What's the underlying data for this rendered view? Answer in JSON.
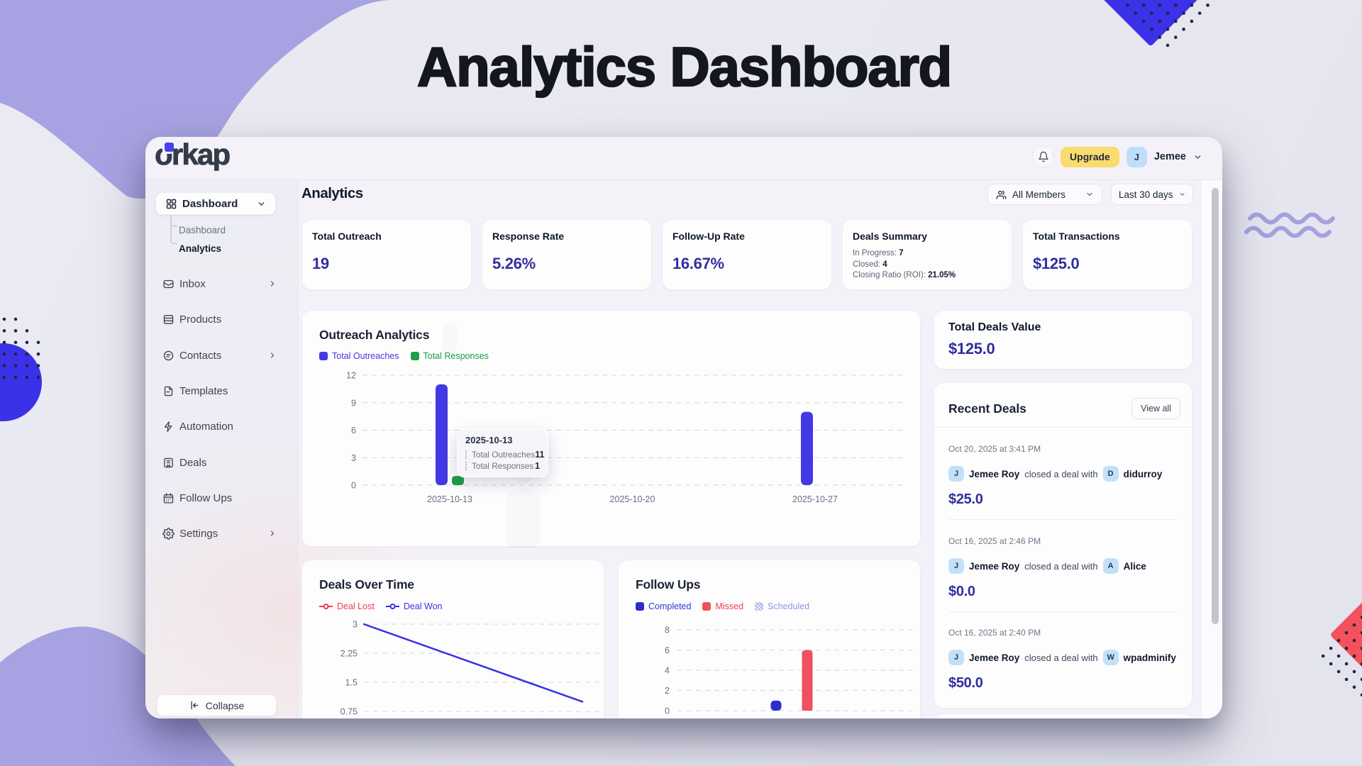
{
  "page": {
    "title": "Analytics Dashboard"
  },
  "colors": {
    "accent_blue": "#4438e2",
    "green": "#1f9e4a",
    "red": "#f0515f",
    "indigo_value": "#322e9e",
    "yellow": "#f8dd6e",
    "purple_blob": "#a7a2e1",
    "blue_shape": "#3b31e9",
    "dots": "#20263a",
    "avatar_bg": "#bedefb",
    "grid_line": "#d5d5e0",
    "legend_blue_text": "#4438e2",
    "legend_green_text": "#189a45",
    "legend_red_text": "#e8414e",
    "scheduled": "#8f99d9"
  },
  "window": {
    "brand": "orkap",
    "header": {
      "upgrade_label": "Upgrade",
      "user_initial": "J",
      "user_name": "Jemee"
    },
    "sidebar": {
      "items": [
        {
          "label": "Dashboard"
        },
        {
          "label": "Inbox"
        },
        {
          "label": "Products"
        },
        {
          "label": "Contacts"
        },
        {
          "label": "Templates"
        },
        {
          "label": "Automation"
        },
        {
          "label": "Deals"
        },
        {
          "label": "Follow Ups"
        },
        {
          "label": "Settings"
        }
      ],
      "sub_items": [
        {
          "label": "Dashboard"
        },
        {
          "label": "Analytics"
        }
      ],
      "collapse_label": "Collapse"
    },
    "main": {
      "heading": "Analytics",
      "filters": {
        "members": "All Members",
        "range": "Last 30 days"
      },
      "stats": [
        {
          "title": "Total Outreach",
          "value": "19"
        },
        {
          "title": "Response Rate",
          "value": "5.26%"
        },
        {
          "title": "Follow-Up Rate",
          "value": "16.67%"
        },
        {
          "title": "Deals Summary",
          "lines": [
            {
              "label": "In Progress:",
              "value": "7"
            },
            {
              "label": "Closed:",
              "value": "4"
            },
            {
              "label": "Closing Ratio (ROI):",
              "value": "21.05%"
            }
          ]
        },
        {
          "title": "Total Transactions",
          "value": "$125.0"
        }
      ],
      "total_deals_value": {
        "title": "Total Deals Value",
        "value": "$125.0"
      },
      "recent_deals": {
        "title": "Recent Deals",
        "action": "View all",
        "items": [
          {
            "time": "Oct 20, 2025 at 3:41 PM",
            "actor": "Jemee Roy",
            "actor_initial": "J",
            "verb": "closed a deal with",
            "target": "didurroy",
            "target_initial": "D",
            "amount": "$25.0"
          },
          {
            "time": "Oct 16, 2025 at 2:46 PM",
            "actor": "Jemee Roy",
            "actor_initial": "J",
            "verb": "closed a deal with",
            "target": "Alice",
            "target_initial": "A",
            "amount": "$0.0"
          },
          {
            "time": "Oct 16, 2025 at 2:40 PM",
            "actor": "Jemee Roy",
            "actor_initial": "J",
            "verb": "closed a deal with",
            "target": "wpadminify",
            "target_initial": "W",
            "amount": "$50.0"
          }
        ]
      }
    }
  },
  "chart_data": [
    {
      "id": "outreach",
      "type": "bar",
      "title": "Outreach Analytics",
      "categories": [
        "2025-10-13",
        "2025-10-20",
        "2025-10-27"
      ],
      "series": [
        {
          "name": "Total Outreaches",
          "color": "#4438e2",
          "values": [
            11,
            0,
            8
          ]
        },
        {
          "name": "Total Responses",
          "color": "#1f9e4a",
          "values": [
            1,
            0,
            0
          ]
        }
      ],
      "ylim": [
        0,
        12
      ],
      "yticks": [
        12,
        9,
        6,
        3,
        0
      ],
      "grid": "dashed-horizontal",
      "legend_position": "top-left",
      "tooltip": {
        "title": "2025-10-13",
        "rows": [
          {
            "label": "Total Outreaches",
            "value": "11"
          },
          {
            "label": "Total Responses",
            "value": "1"
          }
        ]
      }
    },
    {
      "id": "deals_over_time",
      "type": "line",
      "title": "Deals Over Time",
      "series": [
        {
          "name": "Deal Lost",
          "color": "#e8414e",
          "values": []
        },
        {
          "name": "Deal Won",
          "color": "#3a30e4",
          "values": [
            3,
            2,
            1
          ]
        }
      ],
      "ylim": [
        0,
        3
      ],
      "yticks": [
        3,
        2.25,
        1.5,
        0.75
      ],
      "grid": "dashed-horizontal",
      "legend_position": "top-left"
    },
    {
      "id": "follow_ups",
      "type": "bar",
      "title": "Follow Ups",
      "series": [
        {
          "name": "Completed",
          "color": "#2d2cd2",
          "values": [
            1
          ]
        },
        {
          "name": "Missed",
          "color": "#f0515f",
          "values": [
            6
          ]
        },
        {
          "name": "Scheduled",
          "color": "#b9c0ea",
          "values": [
            0
          ]
        }
      ],
      "ylim": [
        0,
        8
      ],
      "yticks": [
        8,
        6,
        4,
        2,
        0
      ],
      "grid": "dashed-horizontal",
      "legend_position": "top-left"
    }
  ]
}
